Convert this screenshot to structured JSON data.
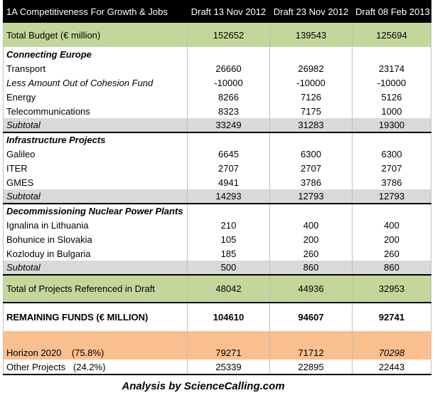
{
  "table": {
    "header": [
      "1A Competitiveness For Growth & Jobs",
      "Draft 13 Nov 2012",
      "Draft 23 Nov 2012",
      "Draft 08 Feb 2013"
    ],
    "rows": [
      [
        "Total Budget (€ million)",
        152652,
        139543,
        125694
      ],
      [
        "Connecting Europe"
      ],
      [
        "Transport",
        26660,
        26982,
        23174
      ],
      [
        "Less Amount Out of Cohesion Fund",
        -10000,
        -10000,
        -10000
      ],
      [
        "Energy",
        8266,
        7126,
        5126
      ],
      [
        "Telecommunications",
        8323,
        7175,
        1000
      ],
      [
        "Subtotal",
        33249,
        31283,
        19300
      ],
      [
        "Infrastructure Projects"
      ],
      [
        "Galileo",
        6645,
        6300,
        6300
      ],
      [
        "ITER",
        2707,
        2707,
        2707
      ],
      [
        "GMES",
        4941,
        3786,
        3786
      ],
      [
        "Subtotal",
        14293,
        12793,
        12793
      ],
      [
        "Decommissioning Nuclear Power Plants"
      ],
      [
        "Ignalina in Lithuania",
        210,
        400,
        400
      ],
      [
        "Bohunice in Slovakia",
        105,
        200,
        200
      ],
      [
        "Kozloduy in Bulgaria",
        185,
        260,
        260
      ],
      [
        "Subtotal",
        500,
        860,
        860
      ],
      [
        "Total of Projects Referenced in Draft",
        48042,
        44936,
        32953
      ],
      [
        "REMAINING FUNDS (€ MILLION)",
        104610,
        94607,
        92741
      ],
      [
        "Horizon 2020    (75.8%)",
        79271,
        71712,
        70298
      ],
      [
        "Other Projects   (24.2%)",
        25339,
        22895,
        22443
      ]
    ]
  },
  "footer": "Analysis by ScienceCalling.com"
}
